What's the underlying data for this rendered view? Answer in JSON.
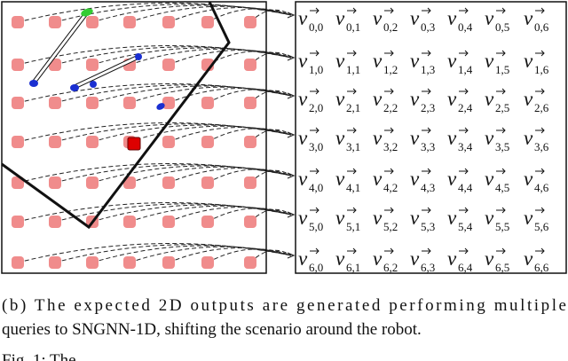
{
  "figure": {
    "symbol": "v",
    "indices": [
      [
        "0,0",
        "0,1",
        "0,2",
        "0,3",
        "0,4",
        "0,5",
        "0,6"
      ],
      [
        "1,0",
        "1,1",
        "1,2",
        "1,3",
        "1,4",
        "1,5",
        "1,6"
      ],
      [
        "2,0",
        "2,1",
        "2,2",
        "2,3",
        "2,4",
        "2,5",
        "2,6"
      ],
      [
        "3,0",
        "3,1",
        "3,2",
        "3,3",
        "3,4",
        "3,5",
        "3,6"
      ],
      [
        "4,0",
        "4,1",
        "4,2",
        "4,3",
        "4,4",
        "4,5",
        "4,6"
      ],
      [
        "5,0",
        "5,1",
        "5,2",
        "5,3",
        "5,4",
        "5,5",
        "5,6"
      ],
      [
        "6,0",
        "6,1",
        "6,2",
        "6,3",
        "6,4",
        "6,5",
        "6,6"
      ]
    ],
    "caption": [
      "(b) The expected 2D outputs are generated performing multiple",
      "queries to SNGNN-1D, shifting the scenario around the robot."
    ],
    "next_caption": "Fig. 1: The"
  }
}
